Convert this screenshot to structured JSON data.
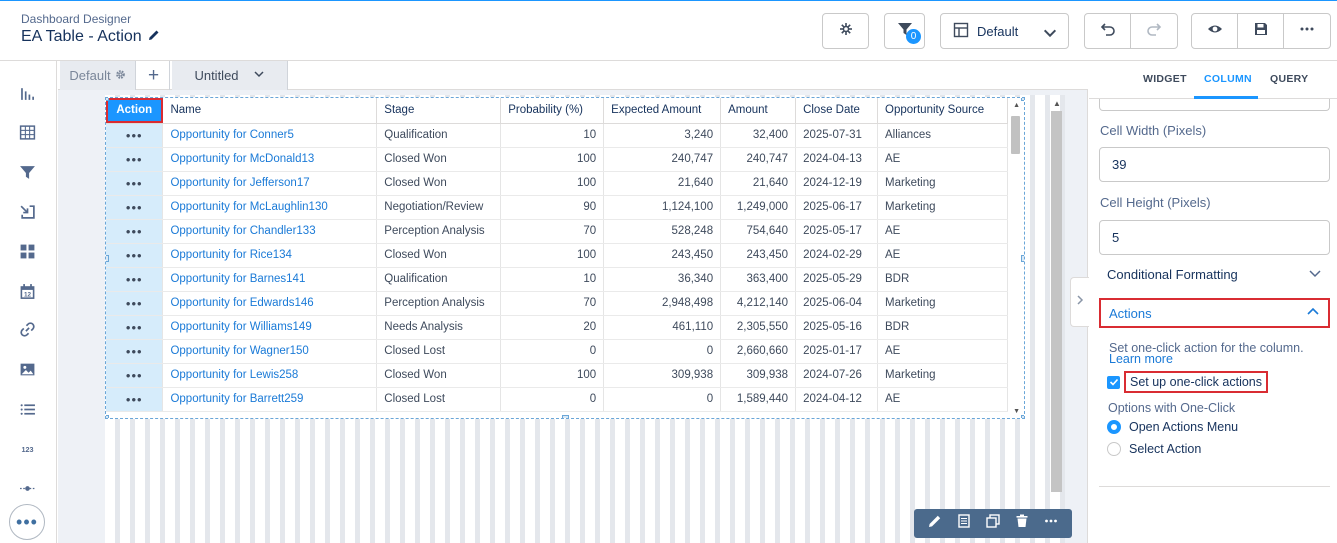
{
  "header": {
    "app_label": "Dashboard Designer",
    "title": "EA Table - Action",
    "filter_count": "0",
    "layout_label": "Default"
  },
  "page_tabs": {
    "default_label": "Default",
    "untitled_label": "Untitled"
  },
  "table": {
    "columns": [
      "Action",
      "Name",
      "Stage",
      "Probability (%)",
      "Expected Amount",
      "Amount",
      "Close Date",
      "Opportunity Source"
    ],
    "action_glyph": "•••",
    "rows": [
      {
        "name": "Opportunity for Conner5",
        "stage": "Qualification",
        "prob": "10",
        "expected": "3,240",
        "amount": "32,400",
        "close": "2025-07-31",
        "source": "Alliances"
      },
      {
        "name": "Opportunity for McDonald13",
        "stage": "Closed Won",
        "prob": "100",
        "expected": "240,747",
        "amount": "240,747",
        "close": "2024-04-13",
        "source": "AE"
      },
      {
        "name": "Opportunity for Jefferson17",
        "stage": "Closed Won",
        "prob": "100",
        "expected": "21,640",
        "amount": "21,640",
        "close": "2024-12-19",
        "source": "Marketing"
      },
      {
        "name": "Opportunity for McLaughlin130",
        "stage": "Negotiation/Review",
        "prob": "90",
        "expected": "1,124,100",
        "amount": "1,249,000",
        "close": "2025-06-17",
        "source": "Marketing"
      },
      {
        "name": "Opportunity for Chandler133",
        "stage": "Perception Analysis",
        "prob": "70",
        "expected": "528,248",
        "amount": "754,640",
        "close": "2025-05-17",
        "source": "AE"
      },
      {
        "name": "Opportunity for Rice134",
        "stage": "Closed Won",
        "prob": "100",
        "expected": "243,450",
        "amount": "243,450",
        "close": "2024-02-29",
        "source": "AE"
      },
      {
        "name": "Opportunity for Barnes141",
        "stage": "Qualification",
        "prob": "10",
        "expected": "36,340",
        "amount": "363,400",
        "close": "2025-05-29",
        "source": "BDR"
      },
      {
        "name": "Opportunity for Edwards146",
        "stage": "Perception Analysis",
        "prob": "70",
        "expected": "2,948,498",
        "amount": "4,212,140",
        "close": "2025-06-04",
        "source": "Marketing"
      },
      {
        "name": "Opportunity for Williams149",
        "stage": "Needs Analysis",
        "prob": "20",
        "expected": "461,110",
        "amount": "2,305,550",
        "close": "2025-05-16",
        "source": "BDR"
      },
      {
        "name": "Opportunity for Wagner150",
        "stage": "Closed Lost",
        "prob": "0",
        "expected": "0",
        "amount": "2,660,660",
        "close": "2025-01-17",
        "source": "AE"
      },
      {
        "name": "Opportunity for Lewis258",
        "stage": "Closed Won",
        "prob": "100",
        "expected": "309,938",
        "amount": "309,938",
        "close": "2024-07-26",
        "source": "Marketing"
      },
      {
        "name": "Opportunity for Barrett259",
        "stage": "Closed Lost",
        "prob": "0",
        "expected": "0",
        "amount": "1,589,440",
        "close": "2024-04-12",
        "source": "AE"
      }
    ]
  },
  "panel": {
    "tabs": [
      "WIDGET",
      "COLUMN",
      "QUERY"
    ],
    "active_tab": "COLUMN",
    "cell_width_label": "Cell Width (Pixels)",
    "cell_width_value": "39",
    "cell_height_label": "Cell Height (Pixels)",
    "cell_height_value": "5",
    "conditional_formatting_label": "Conditional Formatting",
    "actions_label": "Actions",
    "help_text": "Set one-click action for the column.",
    "learn_more": "Learn more",
    "setup_label": "Set up one-click actions",
    "setup_checked": true,
    "options_label": "Options with One-Click",
    "option_open_menu": "Open Actions Menu",
    "option_select_action": "Select Action",
    "selected_option": "Open Actions Menu"
  },
  "colors": {
    "accent": "#1b96ff",
    "link": "#1a7ad7",
    "highlight_border": "#d92c32",
    "action_column_bg": "#d6ecfb",
    "toolbar_bg": "#4b6a8c"
  },
  "icons": {
    "header": [
      "sparkle-icon",
      "filter-icon",
      "layout-icon",
      "chevron-down-icon",
      "undo-icon",
      "redo-icon",
      "preview-icon",
      "save-icon",
      "more-icon"
    ],
    "sidebar": [
      "chart-icon",
      "table-icon",
      "filter-icon",
      "compare-icon",
      "container-icon",
      "date-icon",
      "link-icon",
      "image-icon",
      "list-icon",
      "number-icon",
      "range-icon",
      "more-icon"
    ],
    "widget_toolbar": [
      "edit-icon",
      "explore-icon",
      "clone-icon",
      "delete-icon",
      "more-icon"
    ]
  }
}
